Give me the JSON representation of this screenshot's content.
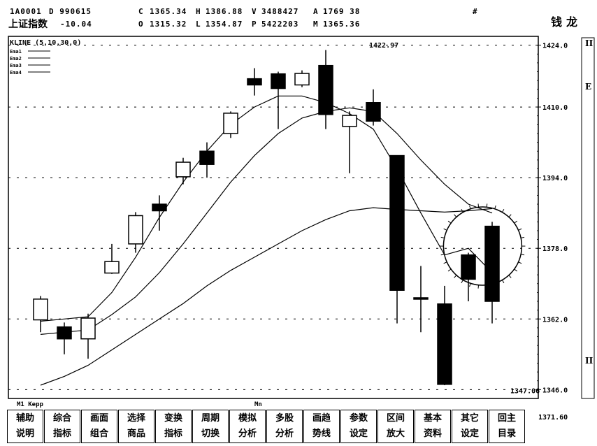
{
  "header": {
    "code": "1A0001",
    "code_suffix": "D 990615",
    "index_name": "上证指数",
    "change": "-10.04",
    "quotes_row1": [
      {
        "label": "C",
        "value": "1365.34"
      },
      {
        "label": "H",
        "value": "1386.88"
      },
      {
        "label": "V",
        "value": "3488427"
      },
      {
        "label": "A",
        "value": "1769 38"
      }
    ],
    "quotes_row2": [
      {
        "label": "O",
        "value": "1315.32"
      },
      {
        "label": "L",
        "value": "1354.87"
      },
      {
        "label": "P",
        "value": "5422203"
      },
      {
        "label": "M",
        "value": "1365.36"
      }
    ],
    "marker": "#",
    "brand": "钱龙"
  },
  "chart_title": "KLINE (5,10,30,0)",
  "legend_items": [
    "Ema1",
    "Ema2",
    "Ema3",
    "Ema4"
  ],
  "status": {
    "left": "M1  Kepp",
    "center": "Mn",
    "value": "1371.60"
  },
  "side_labels": [
    "II",
    "E",
    "II"
  ],
  "chart_data": {
    "type": "candlestick",
    "y_axis_ticks": [
      "1424.0",
      "1410.0",
      "1394.0",
      "1378.0",
      "1362.0",
      "1346.0"
    ],
    "y_ticks_values": [
      1424,
      1410,
      1394,
      1378,
      1362,
      1346
    ],
    "ylim": [
      1344,
      1426
    ],
    "annotations": [
      {
        "text": "1422.97",
        "value": 1422.97,
        "index": 14
      },
      {
        "text": "1347.06",
        "value": 1347.06,
        "index": 20
      }
    ],
    "candles": [
      {
        "o": 1361.8,
        "c": 1366.5,
        "h": 1367.2,
        "l": 1359.0
      },
      {
        "o": 1360.2,
        "c": 1357.5,
        "h": 1361.2,
        "l": 1354.0
      },
      {
        "o": 1357.5,
        "c": 1362.2,
        "h": 1363.2,
        "l": 1353.0
      },
      {
        "o": 1372.4,
        "c": 1375.0,
        "h": 1379.0,
        "l": 1372.2
      },
      {
        "o": 1379.0,
        "c": 1385.4,
        "h": 1386.2,
        "l": 1377.0
      },
      {
        "o": 1388.0,
        "c": 1386.5,
        "h": 1390.0,
        "l": 1382.0
      },
      {
        "o": 1394.2,
        "c": 1397.5,
        "h": 1398.5,
        "l": 1392.5
      },
      {
        "o": 1400.0,
        "c": 1397.0,
        "h": 1402.0,
        "l": 1394.0
      },
      {
        "o": 1404.0,
        "c": 1408.6,
        "h": 1409.0,
        "l": 1403.0
      },
      {
        "o": 1416.4,
        "c": 1415.0,
        "h": 1418.8,
        "l": 1412.6
      },
      {
        "o": 1417.5,
        "c": 1414.2,
        "h": 1418.0,
        "l": 1405.0
      },
      {
        "o": 1415.0,
        "c": 1417.6,
        "h": 1418.3,
        "l": 1414.5
      },
      {
        "o": 1419.4,
        "c": 1408.3,
        "h": 1422.9,
        "l": 1405.0
      },
      {
        "o": 1405.6,
        "c": 1408.1,
        "h": 1409.0,
        "l": 1395.0
      },
      {
        "o": 1411.0,
        "c": 1406.8,
        "h": 1414.0,
        "l": 1405.8
      },
      {
        "o": 1399.0,
        "c": 1368.5,
        "h": 1399.0,
        "l": 1361.0
      },
      {
        "o": 1366.8,
        "c": 1366.5,
        "h": 1374.0,
        "l": 1359.0
      },
      {
        "o": 1365.4,
        "c": 1347.2,
        "h": 1369.5,
        "l": 1347.0
      },
      {
        "o": 1376.5,
        "c": 1371.0,
        "h": 1377.0,
        "l": 1366.0
      },
      {
        "o": 1383.0,
        "c": 1366.0,
        "h": 1384.0,
        "l": 1361.0
      }
    ],
    "series": [
      {
        "values": [
          1361.5,
          1362.0,
          1362.5,
          1368,
          1376,
          1385,
          1393,
          1400,
          1406,
          1410,
          1412.5,
          1412.5,
          1411,
          1408.5,
          1405,
          1396,
          1386,
          1376.5,
          1378,
          1372.5
        ]
      },
      {
        "values": [
          1358.5,
          1359.0,
          1359.5,
          1363,
          1367,
          1372.5,
          1379,
          1386,
          1393,
          1399,
          1404,
          1407.5,
          1409,
          1409.8,
          1409,
          1404,
          1398,
          1392.5,
          1388,
          1386
        ]
      },
      {
        "values": [
          1347,
          1349,
          1351.5,
          1355,
          1358.5,
          1362,
          1365.5,
          1369.5,
          1373,
          1376,
          1379,
          1382,
          1384.5,
          1386.5,
          1387.2,
          1386.8,
          1386.5,
          1386.2,
          1386.5,
          1387
        ]
      }
    ],
    "highlight": {
      "type": "circle",
      "center_index": 18.6,
      "center_value": 1378.5
    }
  },
  "buttons": [
    {
      "line1": "辅助",
      "line2": "说明"
    },
    {
      "line1": "综合",
      "line2": "指标"
    },
    {
      "line1": "画面",
      "line2": "组合"
    },
    {
      "line1": "选择",
      "line2": "商品"
    },
    {
      "line1": "变换",
      "line2": "指标"
    },
    {
      "line1": "周期",
      "line2": "切换"
    },
    {
      "line1": "模拟",
      "line2": "分析"
    },
    {
      "line1": "多股",
      "line2": "分析"
    },
    {
      "line1": "画趋",
      "line2": "势线"
    },
    {
      "line1": "参数",
      "line2": "设定"
    },
    {
      "line1": "区间",
      "line2": "放大"
    },
    {
      "line1": "基本",
      "line2": "资料"
    },
    {
      "line1": "其它",
      "line2": "设定"
    },
    {
      "line1": "回主",
      "line2": "目录"
    }
  ]
}
